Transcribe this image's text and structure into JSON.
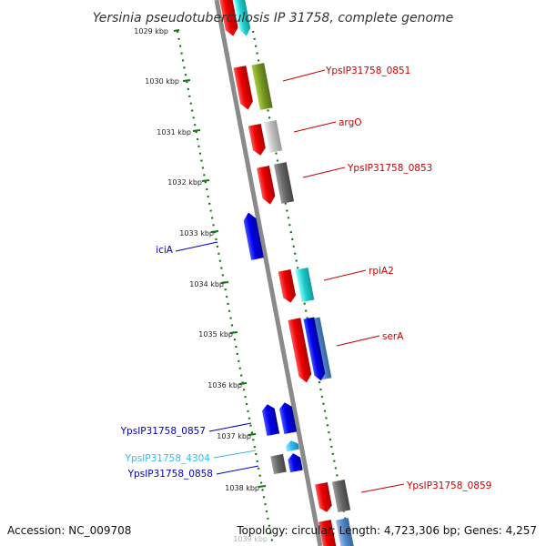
{
  "title": "Yersinia pseudotuberculosis IP 31758, complete genome",
  "accession": "Accession: NC_009708",
  "topology": "Topology: circular; Length: 4,723,306 bp; Genes: 4,257",
  "ticks": [
    "1029 kbp",
    "1030 kbp",
    "1031 kbp",
    "1032 kbp",
    "1033 kbp",
    "1034 kbp",
    "1035 kbp",
    "1036 kbp",
    "1037 kbp",
    "1038 kbp",
    "1039 kbp"
  ],
  "genes": [
    {
      "name": "YpsIP31758_0851",
      "color": "#cc0000"
    },
    {
      "name": "argO",
      "color": "#cc0000"
    },
    {
      "name": "YpsIP31758_0853",
      "color": "#cc0000"
    },
    {
      "name": "iciA",
      "color": "#0000bb"
    },
    {
      "name": "rpiA2",
      "color": "#cc0000"
    },
    {
      "name": "serA",
      "color": "#cc0000"
    },
    {
      "name": "YpsIP31758_0857",
      "color": "#0000bb"
    },
    {
      "name": "YpsIP31758_4304",
      "color": "#33bbee"
    },
    {
      "name": "YpsIP31758_0858",
      "color": "#0000bb"
    },
    {
      "name": "YpsIP31758_0859",
      "color": "#cc0000"
    }
  ],
  "colors": {
    "backbone": "#8a8a8a",
    "forward_strand": "#ee0000",
    "reverse_strand": "#0000ee",
    "cog_cyan": "#22cccc",
    "cog_olive": "#7a9a22",
    "cog_lightgray": "#c0c0c0",
    "cog_darkgray": "#666666",
    "cog_steelblue": "#5588cc",
    "tick_green": "#117711"
  }
}
